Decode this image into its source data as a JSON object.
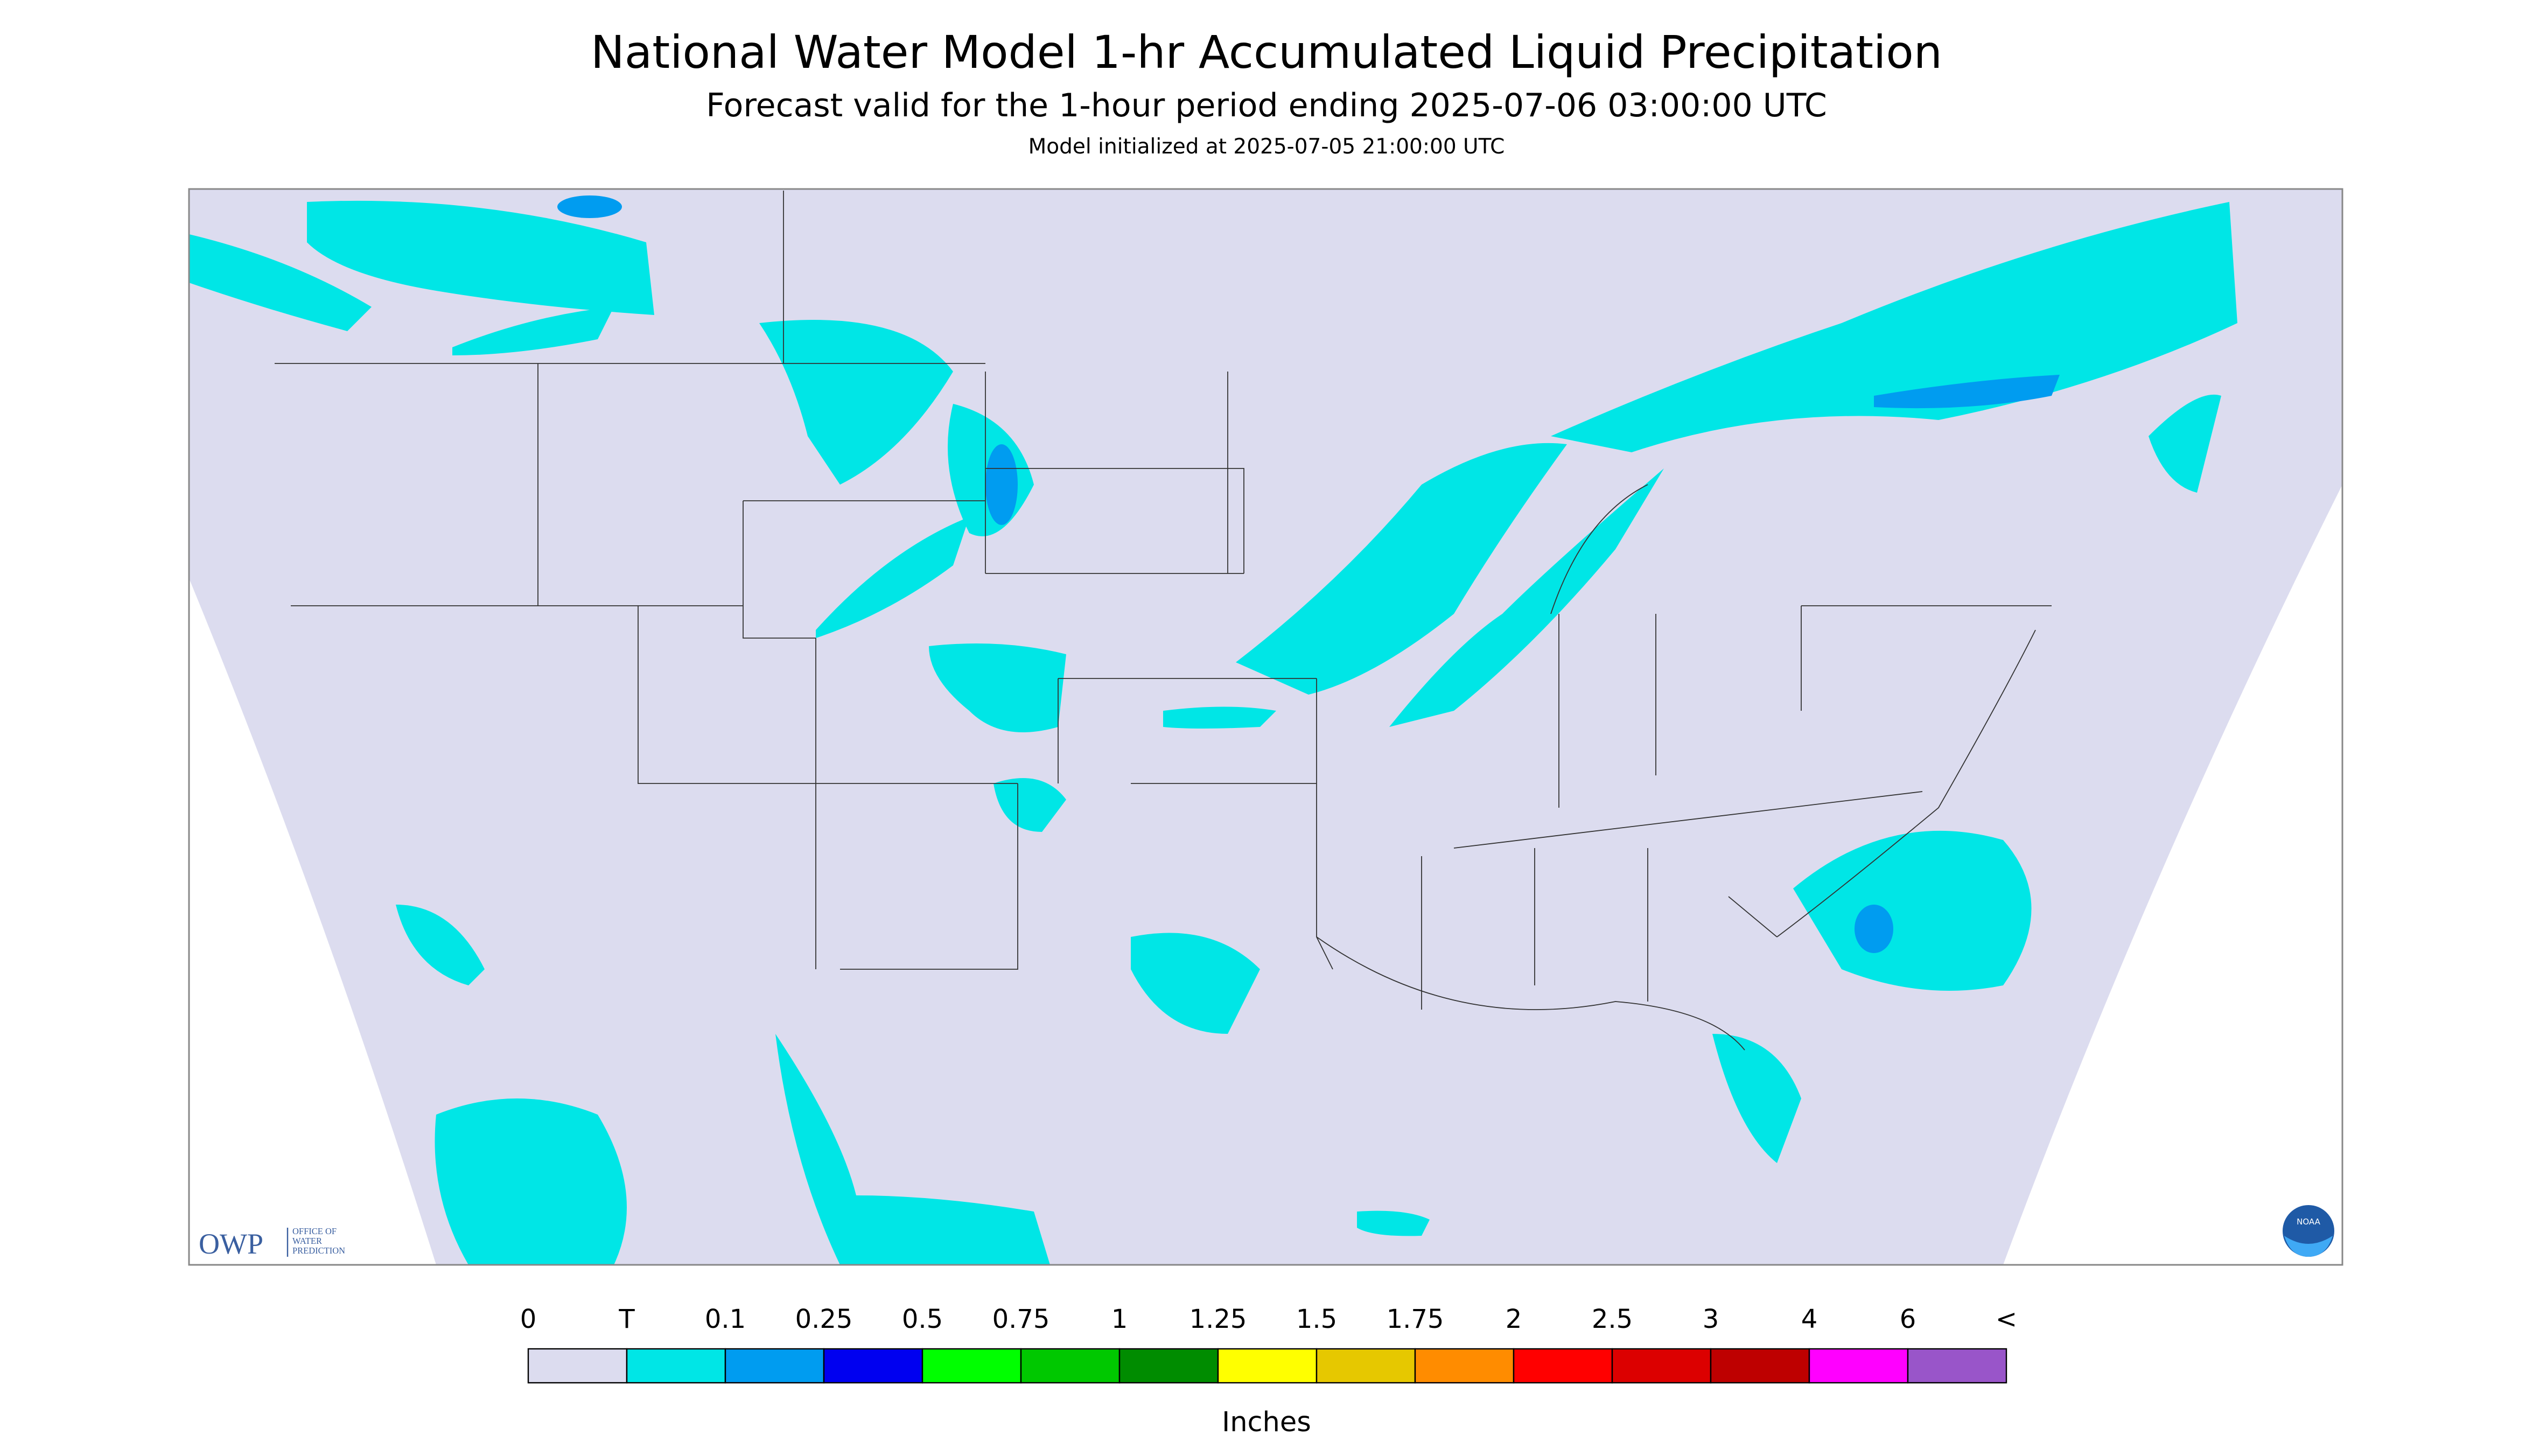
{
  "header": {
    "title": "National Water Model 1-hr Accumulated Liquid Precipitation",
    "subtitle": "Forecast valid for the 1-hour period ending 2025-07-06 03:00:00 UTC",
    "note": "Model initialized at 2025-07-05 21:00:00 UTC"
  },
  "logos": {
    "owp": "OWP",
    "owp_full": [
      "OFFICE OF",
      "WATER",
      "PREDICTION"
    ],
    "noaa": "NOAA"
  },
  "legend": {
    "labels": [
      "0",
      "T",
      "0.1",
      "0.25",
      "0.5",
      "0.75",
      "1",
      "1.25",
      "1.5",
      "1.75",
      "2",
      "2.5",
      "3",
      "4",
      "6",
      "<"
    ],
    "colors": [
      "#dcdcef",
      "#00e6e6",
      "#009cf0",
      "#0000f0",
      "#00ff00",
      "#00c800",
      "#008c00",
      "#ffff00",
      "#e6c800",
      "#ff8c00",
      "#ff0000",
      "#dc0000",
      "#be0000",
      "#ff00ff",
      "#9955c9"
    ],
    "units": "Inches"
  }
}
